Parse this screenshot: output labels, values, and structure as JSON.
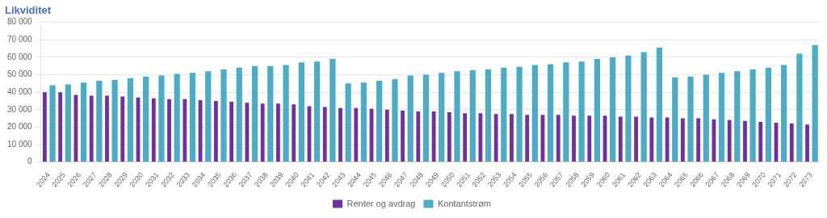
{
  "chart_data": {
    "type": "bar",
    "title": "Likviditet",
    "categories": [
      "2024",
      "2025",
      "2026",
      "2027",
      "2028",
      "2029",
      "2030",
      "2031",
      "2032",
      "2033",
      "2034",
      "2035",
      "2036",
      "2037",
      "2038",
      "2039",
      "2040",
      "2041",
      "2042",
      "2043",
      "2044",
      "2045",
      "2046",
      "2047",
      "2048",
      "2049",
      "2050",
      "2051",
      "2052",
      "2053",
      "2054",
      "2055",
      "2056",
      "2057",
      "2058",
      "2059",
      "2060",
      "2061",
      "2062",
      "2063",
      "2064",
      "2065",
      "2066",
      "2067",
      "2068",
      "2069",
      "2070",
      "2071",
      "2072",
      "2073"
    ],
    "series": [
      {
        "name": "Renter og avdrag",
        "color": "#7030a0",
        "values": [
          40000,
          40000,
          38500,
          38000,
          38000,
          37500,
          37000,
          36500,
          36000,
          36000,
          35500,
          35000,
          34500,
          34000,
          33500,
          33500,
          33000,
          32000,
          31500,
          31000,
          31000,
          30500,
          30000,
          29500,
          29000,
          29000,
          28500,
          28000,
          28000,
          27500,
          27500,
          27000,
          27000,
          27000,
          26500,
          26500,
          26500,
          26000,
          26000,
          25500,
          25500,
          25000,
          25000,
          24500,
          24000,
          23500,
          23000,
          22500,
          22000,
          21500
        ]
      },
      {
        "name": "Kontantstrøm",
        "color": "#4bacc6",
        "values": [
          44000,
          44500,
          45500,
          46500,
          47000,
          48000,
          49000,
          49500,
          50500,
          51000,
          52000,
          53000,
          54000,
          55000,
          55000,
          55500,
          57000,
          57500,
          59000,
          45000,
          45500,
          46500,
          47500,
          49500,
          50000,
          51000,
          52000,
          52500,
          53000,
          54000,
          54500,
          55500,
          56000,
          57000,
          57500,
          59000,
          60000,
          61000,
          63000,
          65500,
          48500,
          49000,
          50000,
          51000,
          52000,
          53000,
          54000,
          55500,
          62000,
          67000
        ]
      }
    ],
    "ylim": [
      0,
      80000
    ],
    "yticks": [
      0,
      {
        "value": 10000,
        "label": "10 000"
      },
      {
        "value": 20000,
        "label": "20 000"
      },
      {
        "value": 30000,
        "label": "30 000"
      },
      {
        "value": 40000,
        "label": "40 000"
      },
      {
        "value": 50000,
        "label": "50 000"
      },
      {
        "value": 60000,
        "label": "60 000"
      },
      {
        "value": 70000,
        "label": "70 000"
      },
      {
        "value": 80000,
        "label": "80 000"
      }
    ],
    "grid": true,
    "legend": "bottom"
  }
}
